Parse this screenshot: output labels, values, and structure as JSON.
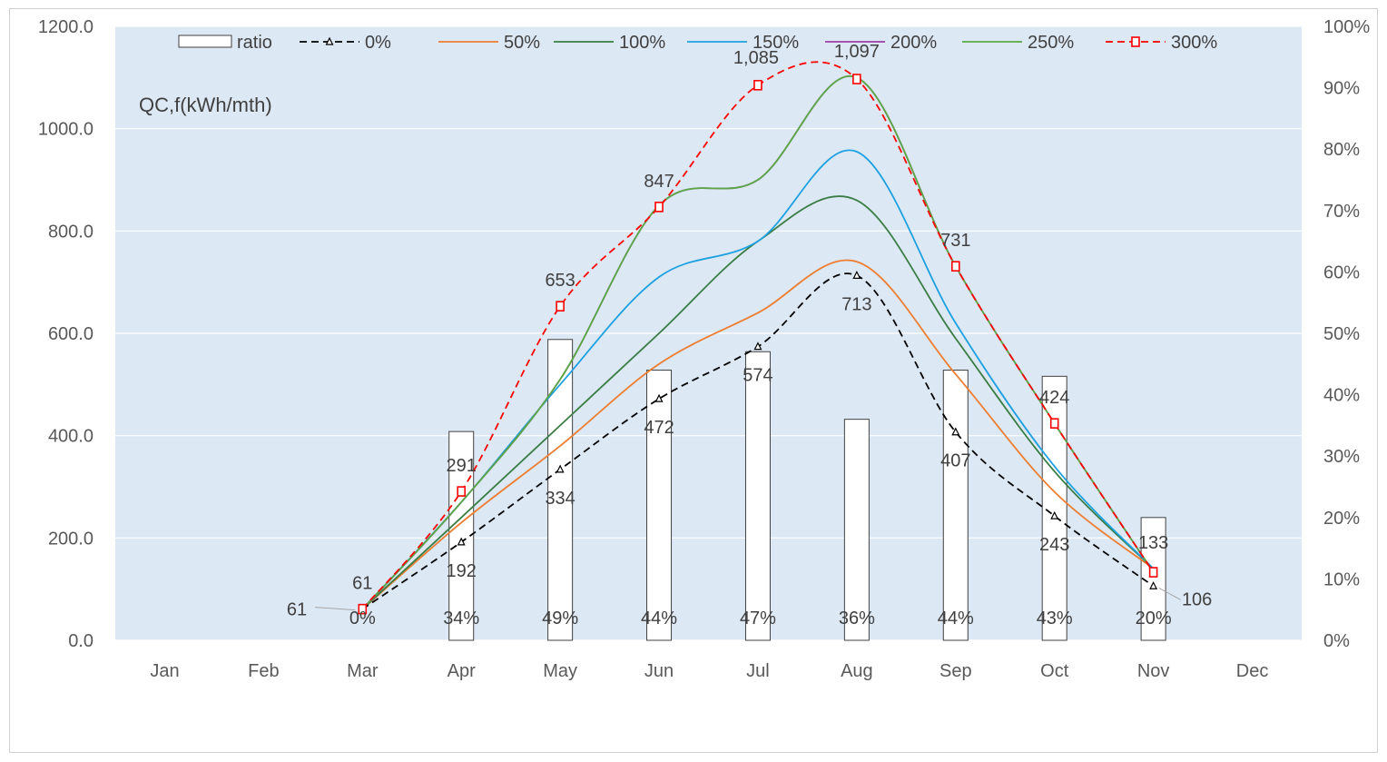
{
  "chart_data": {
    "type": "bar",
    "title": "QC,f(kWh/mth)",
    "categories": [
      "Jan",
      "Feb",
      "Mar",
      "Apr",
      "May",
      "Jun",
      "Jul",
      "Aug",
      "Sep",
      "Oct",
      "Nov",
      "Dec"
    ],
    "y_left": {
      "range": [
        0,
        1200
      ],
      "ticks": [
        "0.0",
        "200.0",
        "400.0",
        "600.0",
        "800.0",
        "1000.0",
        "1200.0"
      ]
    },
    "y_right": {
      "range": [
        0,
        100
      ],
      "ticks": [
        "0%",
        "10%",
        "20%",
        "30%",
        "40%",
        "50%",
        "60%",
        "70%",
        "80%",
        "90%",
        "100%"
      ]
    },
    "plot_background": "#dde8f5",
    "grid": true,
    "legend_position": "top",
    "bar_series": {
      "name": "ratio",
      "axis": "right",
      "values": [
        null,
        null,
        0,
        34,
        49,
        44,
        47,
        36,
        44,
        43,
        20,
        null
      ],
      "labels": [
        "",
        "",
        "0%",
        "34%",
        "49%",
        "44%",
        "47%",
        "36%",
        "44%",
        "43%",
        "20%",
        ""
      ]
    },
    "series": [
      {
        "name": "0%",
        "color": "#000000",
        "dash": "dash",
        "marker": "triangle",
        "values": [
          null,
          null,
          61,
          192,
          334,
          472,
          574,
          713,
          407,
          243,
          106,
          null
        ],
        "labels": [
          "",
          "",
          "61",
          "192",
          "334",
          "472",
          "574",
          "713",
          "407",
          "243",
          "106",
          ""
        ]
      },
      {
        "name": "50%",
        "color": "#ed7d31",
        "dash": "solid",
        "marker": "none",
        "values": [
          null,
          null,
          61,
          230,
          380,
          540,
          640,
          740,
          520,
          290,
          140,
          null
        ]
      },
      {
        "name": "100%",
        "color": "#3a7d44",
        "dash": "solid",
        "marker": "none",
        "values": [
          null,
          null,
          61,
          240,
          420,
          600,
          780,
          860,
          590,
          330,
          140,
          null
        ]
      },
      {
        "name": "150%",
        "color": "#1da1e0",
        "dash": "solid",
        "marker": "none",
        "values": [
          null,
          null,
          61,
          270,
          500,
          710,
          780,
          955,
          620,
          340,
          140,
          null
        ]
      },
      {
        "name": "200%",
        "color": "#9b3fa5",
        "dash": "solid",
        "marker": "none",
        "values": [
          null,
          null,
          61,
          270,
          510,
          850,
          900,
          1100,
          731,
          424,
          133,
          null
        ]
      },
      {
        "name": "250%",
        "color": "#5aa845",
        "dash": "solid",
        "marker": "none",
        "values": [
          null,
          null,
          61,
          270,
          510,
          850,
          900,
          1100,
          731,
          424,
          133,
          null
        ]
      },
      {
        "name": "300%",
        "color": "#ff0000",
        "dash": "dash",
        "marker": "square",
        "values": [
          null,
          null,
          61,
          291,
          653,
          847,
          1085,
          1097,
          731,
          424,
          133,
          null
        ],
        "labels": [
          "",
          "",
          "61",
          "291",
          "653",
          "847",
          "1,085",
          "1,097",
          "731",
          "424",
          "133",
          ""
        ]
      }
    ]
  }
}
